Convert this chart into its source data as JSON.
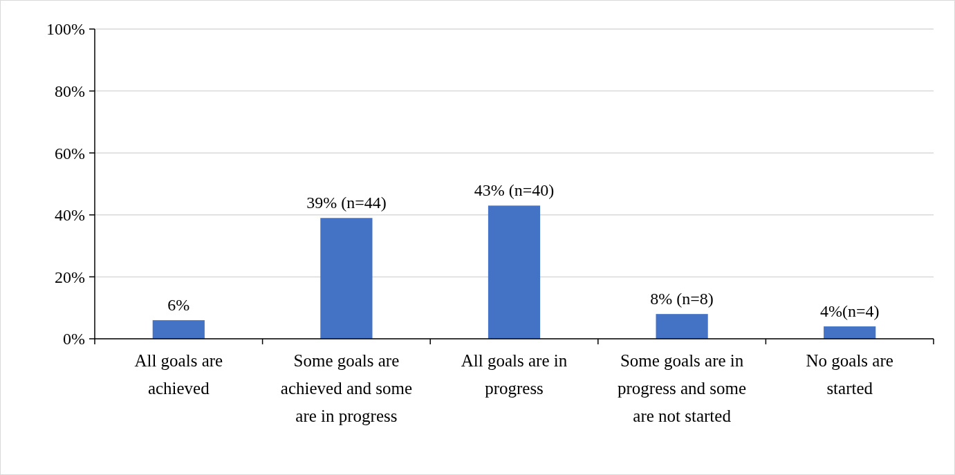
{
  "chart_data": {
    "type": "bar",
    "categories": [
      "All goals are achieved",
      "Some goals are achieved and some are in progress",
      "All goals are in progress",
      "Some goals are in progress and some are not started",
      "No goals are started"
    ],
    "values": [
      6,
      39,
      43,
      8,
      4
    ],
    "value_labels": [
      "6%",
      "39% (n=44)",
      "43% (n=40)",
      "8% (n=8)",
      "4%(n=4)"
    ],
    "color": "#4472c4",
    "ylim": [
      0,
      100
    ],
    "yticks": [
      {
        "value": 0,
        "label": "0%"
      },
      {
        "value": 20,
        "label": "20%"
      },
      {
        "value": 40,
        "label": "40%"
      },
      {
        "value": 60,
        "label": "60%"
      },
      {
        "value": 80,
        "label": "80%"
      },
      {
        "value": 100,
        "label": "100%"
      }
    ],
    "grid": "y"
  }
}
